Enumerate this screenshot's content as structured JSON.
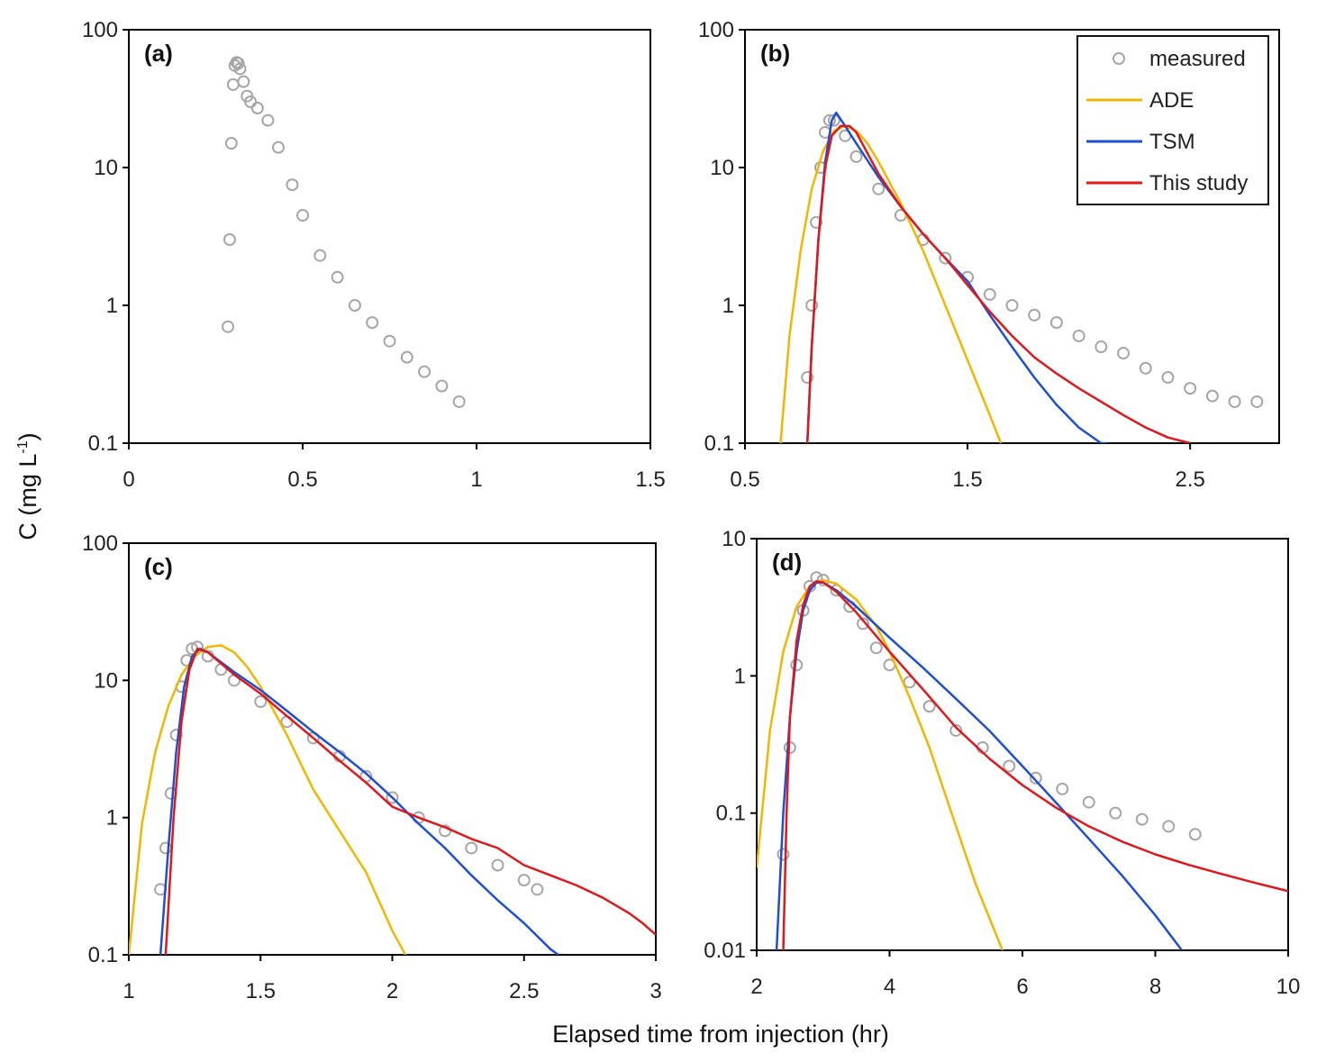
{
  "figure": {
    "ylabel": "C (mg L",
    "ylabel_sup": "-1",
    "ylabel_close": ")",
    "xlabel": "Elapsed time from injection (hr)",
    "colors": {
      "measured": "#a6a6a6",
      "ADE": "#f2b600",
      "TSM": "#1f4fd1",
      "This study": "#e0171b",
      "axis": "#000000"
    }
  },
  "legend": {
    "entries": [
      {
        "label": "measured",
        "series": "measured"
      },
      {
        "label": "ADE",
        "series": "ADE"
      },
      {
        "label": "TSM",
        "series": "TSM"
      },
      {
        "label": "This study",
        "series": "This study"
      }
    ]
  },
  "chart_data": [
    {
      "panel": "(a)",
      "type": "scatter",
      "yscale": "log",
      "xlim": [
        0,
        1.5
      ],
      "ylim": [
        0.1,
        100
      ],
      "xticks": [
        "0",
        "0.5",
        "1",
        "1.5"
      ],
      "yticks": [
        "0.1",
        "1",
        "10",
        "100"
      ],
      "series": [
        {
          "name": "measured",
          "kind": "points",
          "x": [
            0.285,
            0.29,
            0.295,
            0.3,
            0.305,
            0.31,
            0.315,
            0.32,
            0.33,
            0.34,
            0.35,
            0.37,
            0.4,
            0.43,
            0.47,
            0.5,
            0.55,
            0.6,
            0.65,
            0.7,
            0.75,
            0.8,
            0.85,
            0.9,
            0.95
          ],
          "y": [
            0.7,
            3,
            15,
            40,
            55,
            58,
            57,
            52,
            42,
            33,
            30,
            27,
            22,
            14,
            7.5,
            4.5,
            2.3,
            1.6,
            1.0,
            0.75,
            0.55,
            0.42,
            0.33,
            0.26,
            0.2
          ]
        }
      ]
    },
    {
      "panel": "(b)",
      "type": "line",
      "yscale": "log",
      "xlim": [
        0.5,
        2.9
      ],
      "ylim": [
        0.1,
        100
      ],
      "xticks": [
        "0.5",
        "1.5",
        "2.5"
      ],
      "yticks": [
        "0.1",
        "1",
        "10",
        "100"
      ],
      "series": [
        {
          "name": "measured",
          "kind": "points",
          "x": [
            0.78,
            0.8,
            0.82,
            0.84,
            0.86,
            0.88,
            0.9,
            0.95,
            1.0,
            1.1,
            1.2,
            1.3,
            1.4,
            1.5,
            1.6,
            1.7,
            1.8,
            1.9,
            2.0,
            2.1,
            2.2,
            2.3,
            2.4,
            2.5,
            2.6,
            2.7,
            2.8
          ],
          "y": [
            0.3,
            1,
            4,
            10,
            18,
            22,
            22,
            17,
            12,
            7,
            4.5,
            3.0,
            2.2,
            1.6,
            1.2,
            1.0,
            0.85,
            0.75,
            0.6,
            0.5,
            0.45,
            0.35,
            0.3,
            0.25,
            0.22,
            0.2,
            0.2
          ]
        },
        {
          "name": "ADE",
          "kind": "line",
          "x": [
            0.66,
            0.7,
            0.75,
            0.8,
            0.85,
            0.9,
            0.95,
            1.0,
            1.05,
            1.1,
            1.2,
            1.3,
            1.4,
            1.5,
            1.6,
            1.65
          ],
          "y": [
            0.1,
            0.6,
            2.5,
            7,
            13,
            18.5,
            20,
            18.5,
            15,
            11,
            5.5,
            2.5,
            1.0,
            0.4,
            0.16,
            0.1
          ]
        },
        {
          "name": "TSM",
          "kind": "line",
          "x": [
            0.78,
            0.8,
            0.83,
            0.86,
            0.89,
            0.91,
            0.95,
            1.0,
            1.1,
            1.2,
            1.3,
            1.4,
            1.5,
            1.6,
            1.7,
            1.8,
            1.9,
            2.0,
            2.1,
            2.13
          ],
          "y": [
            0.1,
            0.5,
            3,
            11,
            22,
            25,
            20,
            15,
            8.5,
            5.2,
            3.3,
            2.2,
            1.5,
            0.85,
            0.5,
            0.3,
            0.19,
            0.13,
            0.1,
            0.1
          ]
        },
        {
          "name": "This study",
          "kind": "line",
          "x": [
            0.78,
            0.8,
            0.83,
            0.86,
            0.89,
            0.93,
            0.97,
            1.0,
            1.1,
            1.2,
            1.3,
            1.4,
            1.5,
            1.6,
            1.7,
            1.8,
            1.9,
            2.0,
            2.1,
            2.2,
            2.3,
            2.4,
            2.5
          ],
          "y": [
            0.1,
            0.5,
            3,
            10,
            17,
            20,
            20,
            18,
            9,
            5.2,
            3.3,
            2.2,
            1.4,
            0.9,
            0.6,
            0.42,
            0.32,
            0.25,
            0.2,
            0.16,
            0.13,
            0.11,
            0.1
          ]
        }
      ]
    },
    {
      "panel": "(c)",
      "type": "line",
      "yscale": "log",
      "xlim": [
        1,
        3
      ],
      "ylim": [
        0.1,
        100
      ],
      "xticks": [
        "1",
        "1.5",
        "2",
        "2.5",
        "3"
      ],
      "yticks": [
        "0.1",
        "1",
        "10",
        "100"
      ],
      "series": [
        {
          "name": "measured",
          "kind": "points",
          "x": [
            1.12,
            1.14,
            1.16,
            1.18,
            1.2,
            1.22,
            1.24,
            1.26,
            1.3,
            1.35,
            1.4,
            1.5,
            1.6,
            1.7,
            1.8,
            1.9,
            2.0,
            2.1,
            2.2,
            2.3,
            2.4,
            2.5,
            2.55
          ],
          "y": [
            0.3,
            0.6,
            1.5,
            4,
            9,
            14,
            17,
            17.5,
            15,
            12,
            10,
            7,
            5,
            3.8,
            2.8,
            2.0,
            1.4,
            1.0,
            0.8,
            0.6,
            0.45,
            0.35,
            0.3
          ]
        },
        {
          "name": "ADE",
          "kind": "line",
          "x": [
            1.0,
            1.05,
            1.1,
            1.15,
            1.2,
            1.25,
            1.3,
            1.35,
            1.4,
            1.45,
            1.5,
            1.6,
            1.7,
            1.8,
            1.9,
            2.0,
            2.05
          ],
          "y": [
            0.1,
            0.9,
            3,
            6.5,
            11,
            15,
            17.5,
            18,
            16,
            12.5,
            9,
            4,
            1.6,
            0.8,
            0.4,
            0.15,
            0.1
          ]
        },
        {
          "name": "TSM",
          "kind": "line",
          "x": [
            1.12,
            1.15,
            1.18,
            1.21,
            1.24,
            1.27,
            1.3,
            1.4,
            1.5,
            1.6,
            1.7,
            1.8,
            1.9,
            2.0,
            2.1,
            2.2,
            2.3,
            2.4,
            2.5,
            2.6,
            2.63
          ],
          "y": [
            0.1,
            0.6,
            3,
            9,
            15,
            17,
            16,
            11.5,
            8.5,
            6,
            4.2,
            3.0,
            2.1,
            1.4,
            0.9,
            0.6,
            0.38,
            0.25,
            0.17,
            0.11,
            0.1
          ]
        },
        {
          "name": "This study",
          "kind": "line",
          "x": [
            1.14,
            1.17,
            1.2,
            1.23,
            1.26,
            1.3,
            1.4,
            1.5,
            1.6,
            1.7,
            1.8,
            1.9,
            2.0,
            2.1,
            2.2,
            2.3,
            2.4,
            2.5,
            2.6,
            2.7,
            2.8,
            2.9,
            2.95,
            3.0
          ],
          "y": [
            0.1,
            1,
            5,
            12,
            17,
            16,
            11,
            8,
            5.5,
            3.8,
            2.6,
            1.8,
            1.2,
            1.0,
            0.85,
            0.7,
            0.6,
            0.45,
            0.38,
            0.32,
            0.26,
            0.2,
            0.17,
            0.14
          ]
        }
      ]
    },
    {
      "panel": "(d)",
      "type": "line",
      "yscale": "log",
      "xlim": [
        2,
        10
      ],
      "ylim": [
        0.01,
        10
      ],
      "xticks": [
        "2",
        "4",
        "6",
        "8",
        "10"
      ],
      "yticks": [
        "0.01",
        "0.1",
        "1",
        "10"
      ],
      "series": [
        {
          "name": "measured",
          "kind": "points",
          "x": [
            2.4,
            2.5,
            2.6,
            2.7,
            2.8,
            2.9,
            3.0,
            3.2,
            3.4,
            3.6,
            3.8,
            4.0,
            4.3,
            4.6,
            5.0,
            5.4,
            5.8,
            6.2,
            6.6,
            7.0,
            7.4,
            7.8,
            8.2,
            8.6
          ],
          "y": [
            0.05,
            0.3,
            1.2,
            3,
            4.5,
            5.2,
            5,
            4.2,
            3.2,
            2.4,
            1.6,
            1.2,
            0.9,
            0.6,
            0.4,
            0.3,
            0.22,
            0.18,
            0.15,
            0.12,
            0.1,
            0.09,
            0.08,
            0.07
          ]
        },
        {
          "name": "ADE",
          "kind": "line",
          "x": [
            2.0,
            2.2,
            2.4,
            2.6,
            2.8,
            3.0,
            3.2,
            3.5,
            3.8,
            4.0,
            4.3,
            4.6,
            5.0,
            5.3,
            5.7
          ],
          "y": [
            0.04,
            0.4,
            1.5,
            3.2,
            4.5,
            5,
            4.7,
            3.6,
            2.3,
            1.5,
            0.7,
            0.3,
            0.08,
            0.03,
            0.01
          ]
        },
        {
          "name": "TSM",
          "kind": "line",
          "x": [
            2.3,
            2.4,
            2.5,
            2.6,
            2.7,
            2.8,
            2.9,
            3.0,
            3.2,
            3.5,
            4.0,
            4.5,
            5.0,
            5.5,
            6.0,
            6.5,
            7.0,
            7.5,
            8.0,
            8.4
          ],
          "y": [
            0.01,
            0.1,
            0.5,
            1.5,
            3,
            4.2,
            4.8,
            4.8,
            4.2,
            3.2,
            1.9,
            1.15,
            0.68,
            0.4,
            0.22,
            0.12,
            0.065,
            0.035,
            0.018,
            0.01
          ]
        },
        {
          "name": "This study",
          "kind": "line",
          "x": [
            2.4,
            2.45,
            2.5,
            2.6,
            2.7,
            2.8,
            2.9,
            3.0,
            3.2,
            3.5,
            4.0,
            4.5,
            5.0,
            5.5,
            6.0,
            6.5,
            7.0,
            7.5,
            8.0,
            8.5,
            9.0,
            9.5,
            10.0
          ],
          "y": [
            0.01,
            0.1,
            0.5,
            1.8,
            3.3,
            4.5,
            4.9,
            4.8,
            4.1,
            2.9,
            1.5,
            0.8,
            0.42,
            0.25,
            0.16,
            0.11,
            0.08,
            0.062,
            0.05,
            0.042,
            0.036,
            0.031,
            0.027
          ]
        }
      ]
    }
  ]
}
